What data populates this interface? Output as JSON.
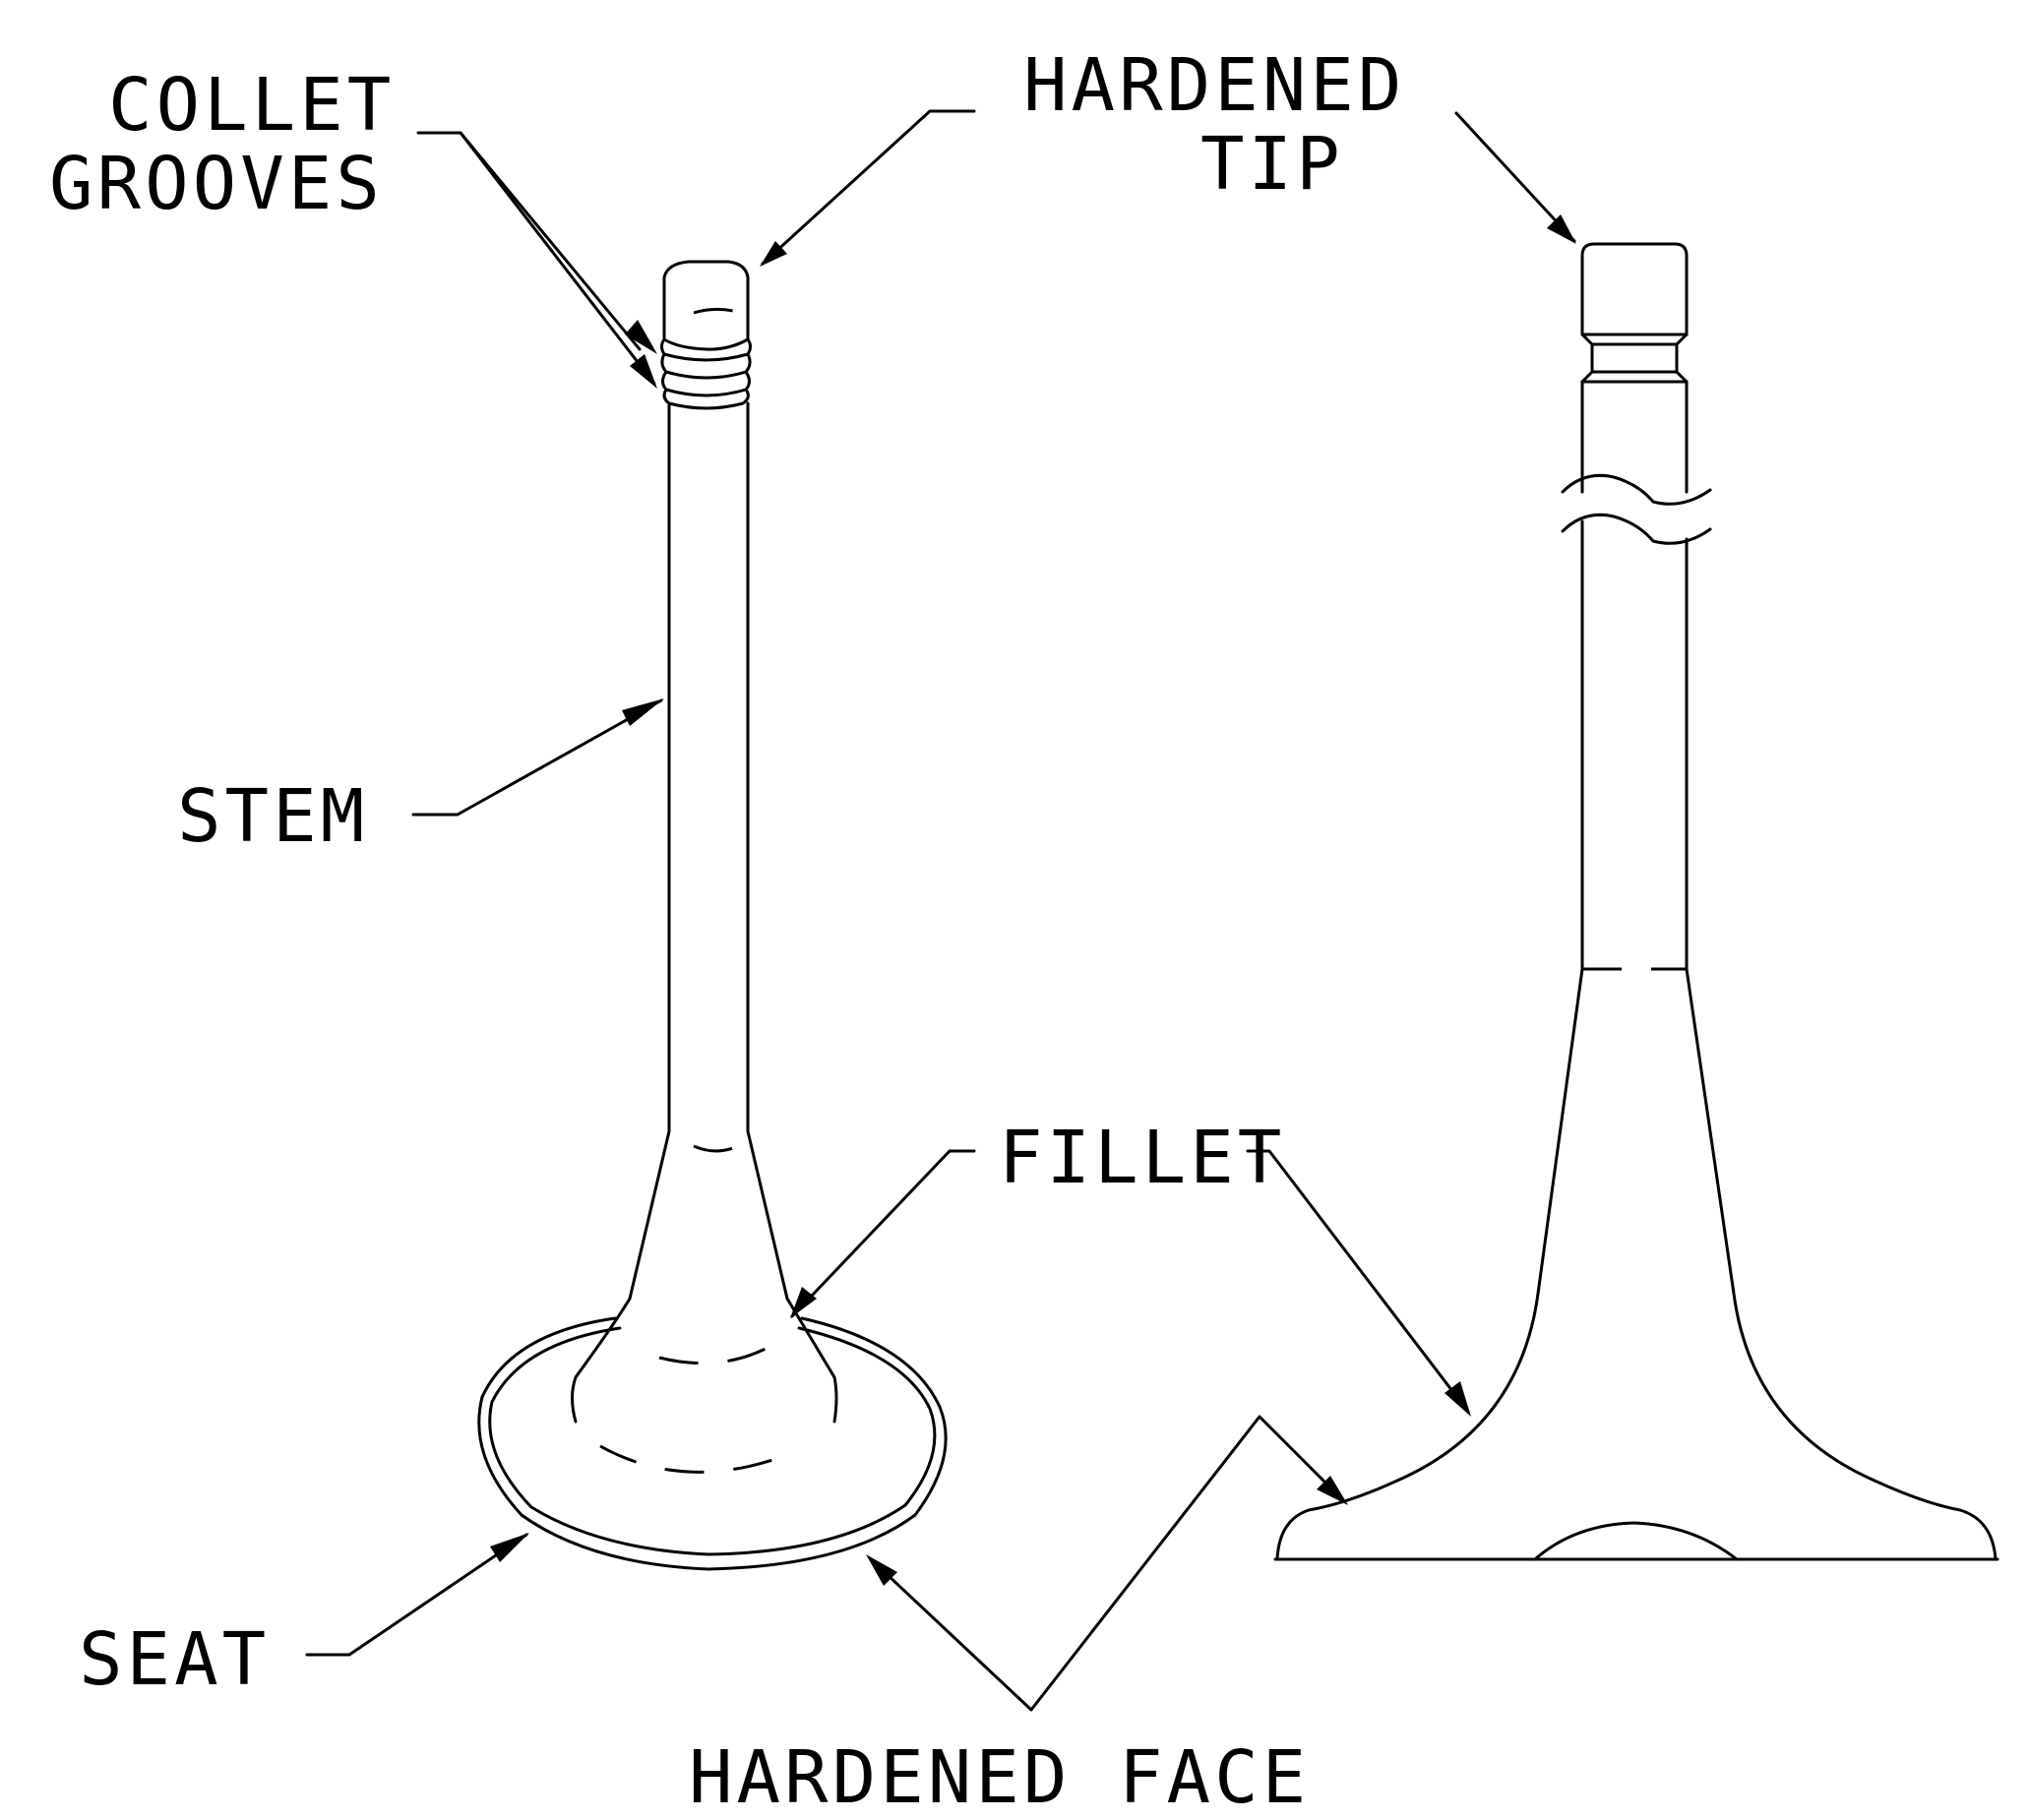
{
  "labels": {
    "collet_grooves_line1": "COLLET",
    "collet_grooves_line2": "GROOVES",
    "hardened_tip_line1": "HARDENED",
    "hardened_tip_line2": "TIP",
    "stem": "STEM",
    "fillet": "FILLET",
    "seat": "SEAT",
    "hardened_face": "HARDENED FACE"
  },
  "colors": {
    "line": "#000000",
    "background": "#ffffff"
  }
}
